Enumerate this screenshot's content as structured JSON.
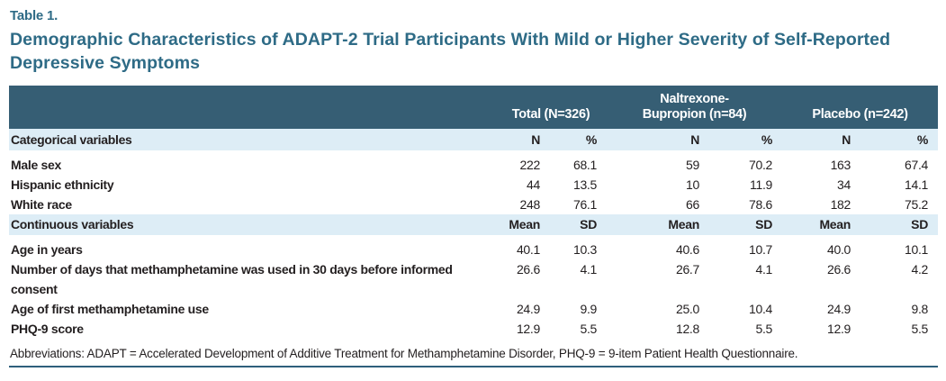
{
  "page": {
    "table_label": "Table 1.",
    "title": "Demographic Characteristics of ADAPT-2 Trial Participants With Mild or Higher Severity of Self-Reported Depressive Symptoms",
    "footnote": "Abbreviations: ADAPT = Accelerated Development of Additive Treatment for Methamphetamine Disorder, PHQ-9 = 9-item Patient Health Questionnaire."
  },
  "colors": {
    "accent_teal": "#2e6b86",
    "header_bg": "#365e74",
    "section_bg": "#ddedf6",
    "rule": "#2e5f7c",
    "text": "#231f20"
  },
  "table": {
    "groups": [
      {
        "label": "Total (N=326)"
      },
      {
        "label": "Naltrexone-\nBupropion (n=84)"
      },
      {
        "label": "Placebo (n=242)"
      }
    ],
    "sections": [
      {
        "label": "Categorical variables",
        "col_headers": [
          "N",
          "%",
          "N",
          "%",
          "N",
          "%"
        ],
        "rows": [
          {
            "label": "Male sex",
            "values": [
              "222",
              "68.1",
              "59",
              "70.2",
              "163",
              "67.4"
            ]
          },
          {
            "label": "Hispanic ethnicity",
            "values": [
              "44",
              "13.5",
              "10",
              "11.9",
              "34",
              "14.1"
            ]
          },
          {
            "label": "White race",
            "values": [
              "248",
              "76.1",
              "66",
              "78.6",
              "182",
              "75.2"
            ]
          }
        ]
      },
      {
        "label": "Continuous variables",
        "col_headers": [
          "Mean",
          "SD",
          "Mean",
          "SD",
          "Mean",
          "SD"
        ],
        "rows": [
          {
            "label": "Number of days that methamphetamine was used in 30 days before informed consent",
            "values": [
              "26.6",
              "4.1",
              "26.7",
              "4.1",
              "26.6",
              "4.2"
            ]
          },
          {
            "label": "Age in years",
            "values": [
              "40.1",
              "10.3",
              "40.6",
              "10.7",
              "40.0",
              "10.1"
            ]
          },
          {
            "label": "Age of first methamphetamine use",
            "values": [
              "24.9",
              "9.9",
              "25.0",
              "10.4",
              "24.9",
              "9.8"
            ]
          },
          {
            "label": "PHQ-9 score",
            "values": [
              "12.9",
              "5.5",
              "12.8",
              "5.5",
              "12.9",
              "5.5"
            ]
          }
        ]
      }
    ]
  }
}
